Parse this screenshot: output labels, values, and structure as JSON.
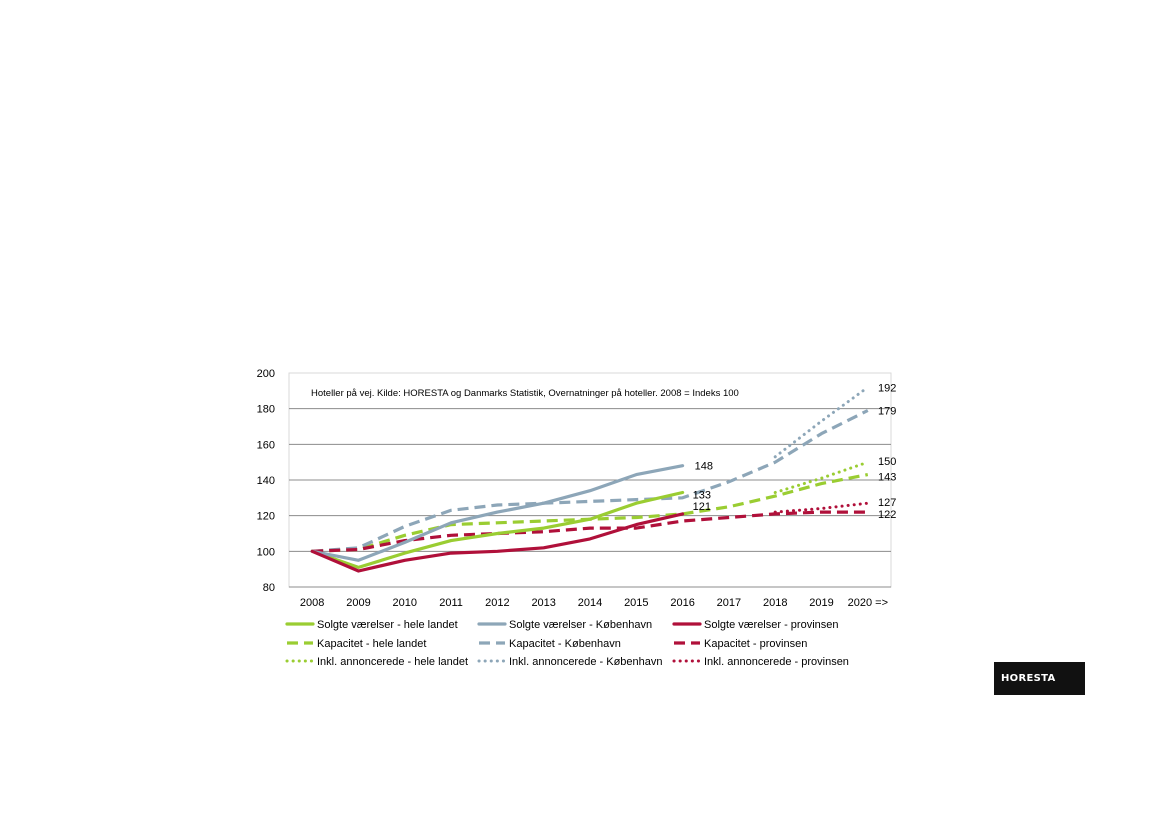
{
  "logo": {
    "text": "HORESTA"
  },
  "chart_data": {
    "type": "line",
    "title": "",
    "subtitle": "Hoteller på vej. Kilde: HORESTA og Danmarks Statistik, Overnatninger på hoteller. 2008 = Indeks 100",
    "xlabel": "",
    "ylabel": "",
    "ylim": [
      80,
      200
    ],
    "yticks": [
      80,
      100,
      120,
      140,
      160,
      180,
      200
    ],
    "categories": [
      "2008",
      "2009",
      "2010",
      "2011",
      "2012",
      "2013",
      "2014",
      "2015",
      "2016",
      "2017",
      "2018",
      "2019",
      "2020 =>"
    ],
    "grid": "horizontal",
    "legend_position": "bottom",
    "colors": {
      "green": "#9ACD32",
      "blue": "#8DA6B8",
      "red": "#B0103A"
    },
    "series": [
      {
        "name": "Solgte værelser - hele landet",
        "color": "#9ACD32",
        "style": "solid",
        "values": [
          100,
          91,
          99,
          106,
          110,
          113,
          118,
          127,
          133,
          null,
          null,
          null,
          null
        ]
      },
      {
        "name": "Solgte værelser - København",
        "color": "#8DA6B8",
        "style": "solid",
        "values": [
          100,
          95,
          105,
          116,
          122,
          127,
          134,
          143,
          148,
          null,
          null,
          null,
          null
        ]
      },
      {
        "name": "Solgte værelser - provinsen",
        "color": "#B0103A",
        "style": "solid",
        "values": [
          100,
          89,
          95,
          99,
          100,
          102,
          107,
          115,
          121,
          null,
          null,
          null,
          null
        ]
      },
      {
        "name": "Kapacitet - hele landet",
        "color": "#9ACD32",
        "style": "dashed",
        "values": [
          100,
          101,
          109,
          115,
          116,
          117,
          118,
          119,
          121,
          125,
          131,
          138,
          143
        ]
      },
      {
        "name": "Kapacitet - København",
        "color": "#8DA6B8",
        "style": "dashed",
        "values": [
          100,
          102,
          114,
          123,
          126,
          127,
          128,
          129,
          130,
          139,
          150,
          166,
          179
        ]
      },
      {
        "name": "Kapacitet - provinsen",
        "color": "#B0103A",
        "style": "dashed",
        "values": [
          100,
          101,
          106,
          109,
          110,
          111,
          113,
          113,
          117,
          119,
          121,
          122,
          122
        ]
      },
      {
        "name": "Inkl. annoncerede - hele landet",
        "color": "#9ACD32",
        "style": "dotted",
        "values": [
          null,
          null,
          null,
          null,
          null,
          null,
          null,
          null,
          null,
          null,
          133,
          141,
          150
        ]
      },
      {
        "name": "Inkl. annoncerede - København",
        "color": "#8DA6B8",
        "style": "dotted",
        "values": [
          null,
          null,
          null,
          null,
          null,
          null,
          null,
          null,
          null,
          null,
          153,
          173,
          192
        ]
      },
      {
        "name": "Inkl. annoncerede - provinsen",
        "color": "#B0103A",
        "style": "dotted",
        "values": [
          null,
          null,
          null,
          null,
          null,
          null,
          null,
          null,
          null,
          null,
          122,
          124,
          127
        ]
      }
    ],
    "end_labels": [
      {
        "text": "148",
        "value": 148,
        "category_index": 8
      },
      {
        "text": "133",
        "value": 133,
        "category_index": 8
      },
      {
        "text": "121",
        "value": 121,
        "category_index": 8
      },
      {
        "text": "192",
        "value": 192,
        "category_index": 12
      },
      {
        "text": "179",
        "value": 179,
        "category_index": 12
      },
      {
        "text": "150",
        "value": 150,
        "category_index": 12
      },
      {
        "text": "143",
        "value": 143,
        "category_index": 12
      },
      {
        "text": "127",
        "value": 127,
        "category_index": 12
      },
      {
        "text": "122",
        "value": 122,
        "category_index": 12
      }
    ]
  }
}
